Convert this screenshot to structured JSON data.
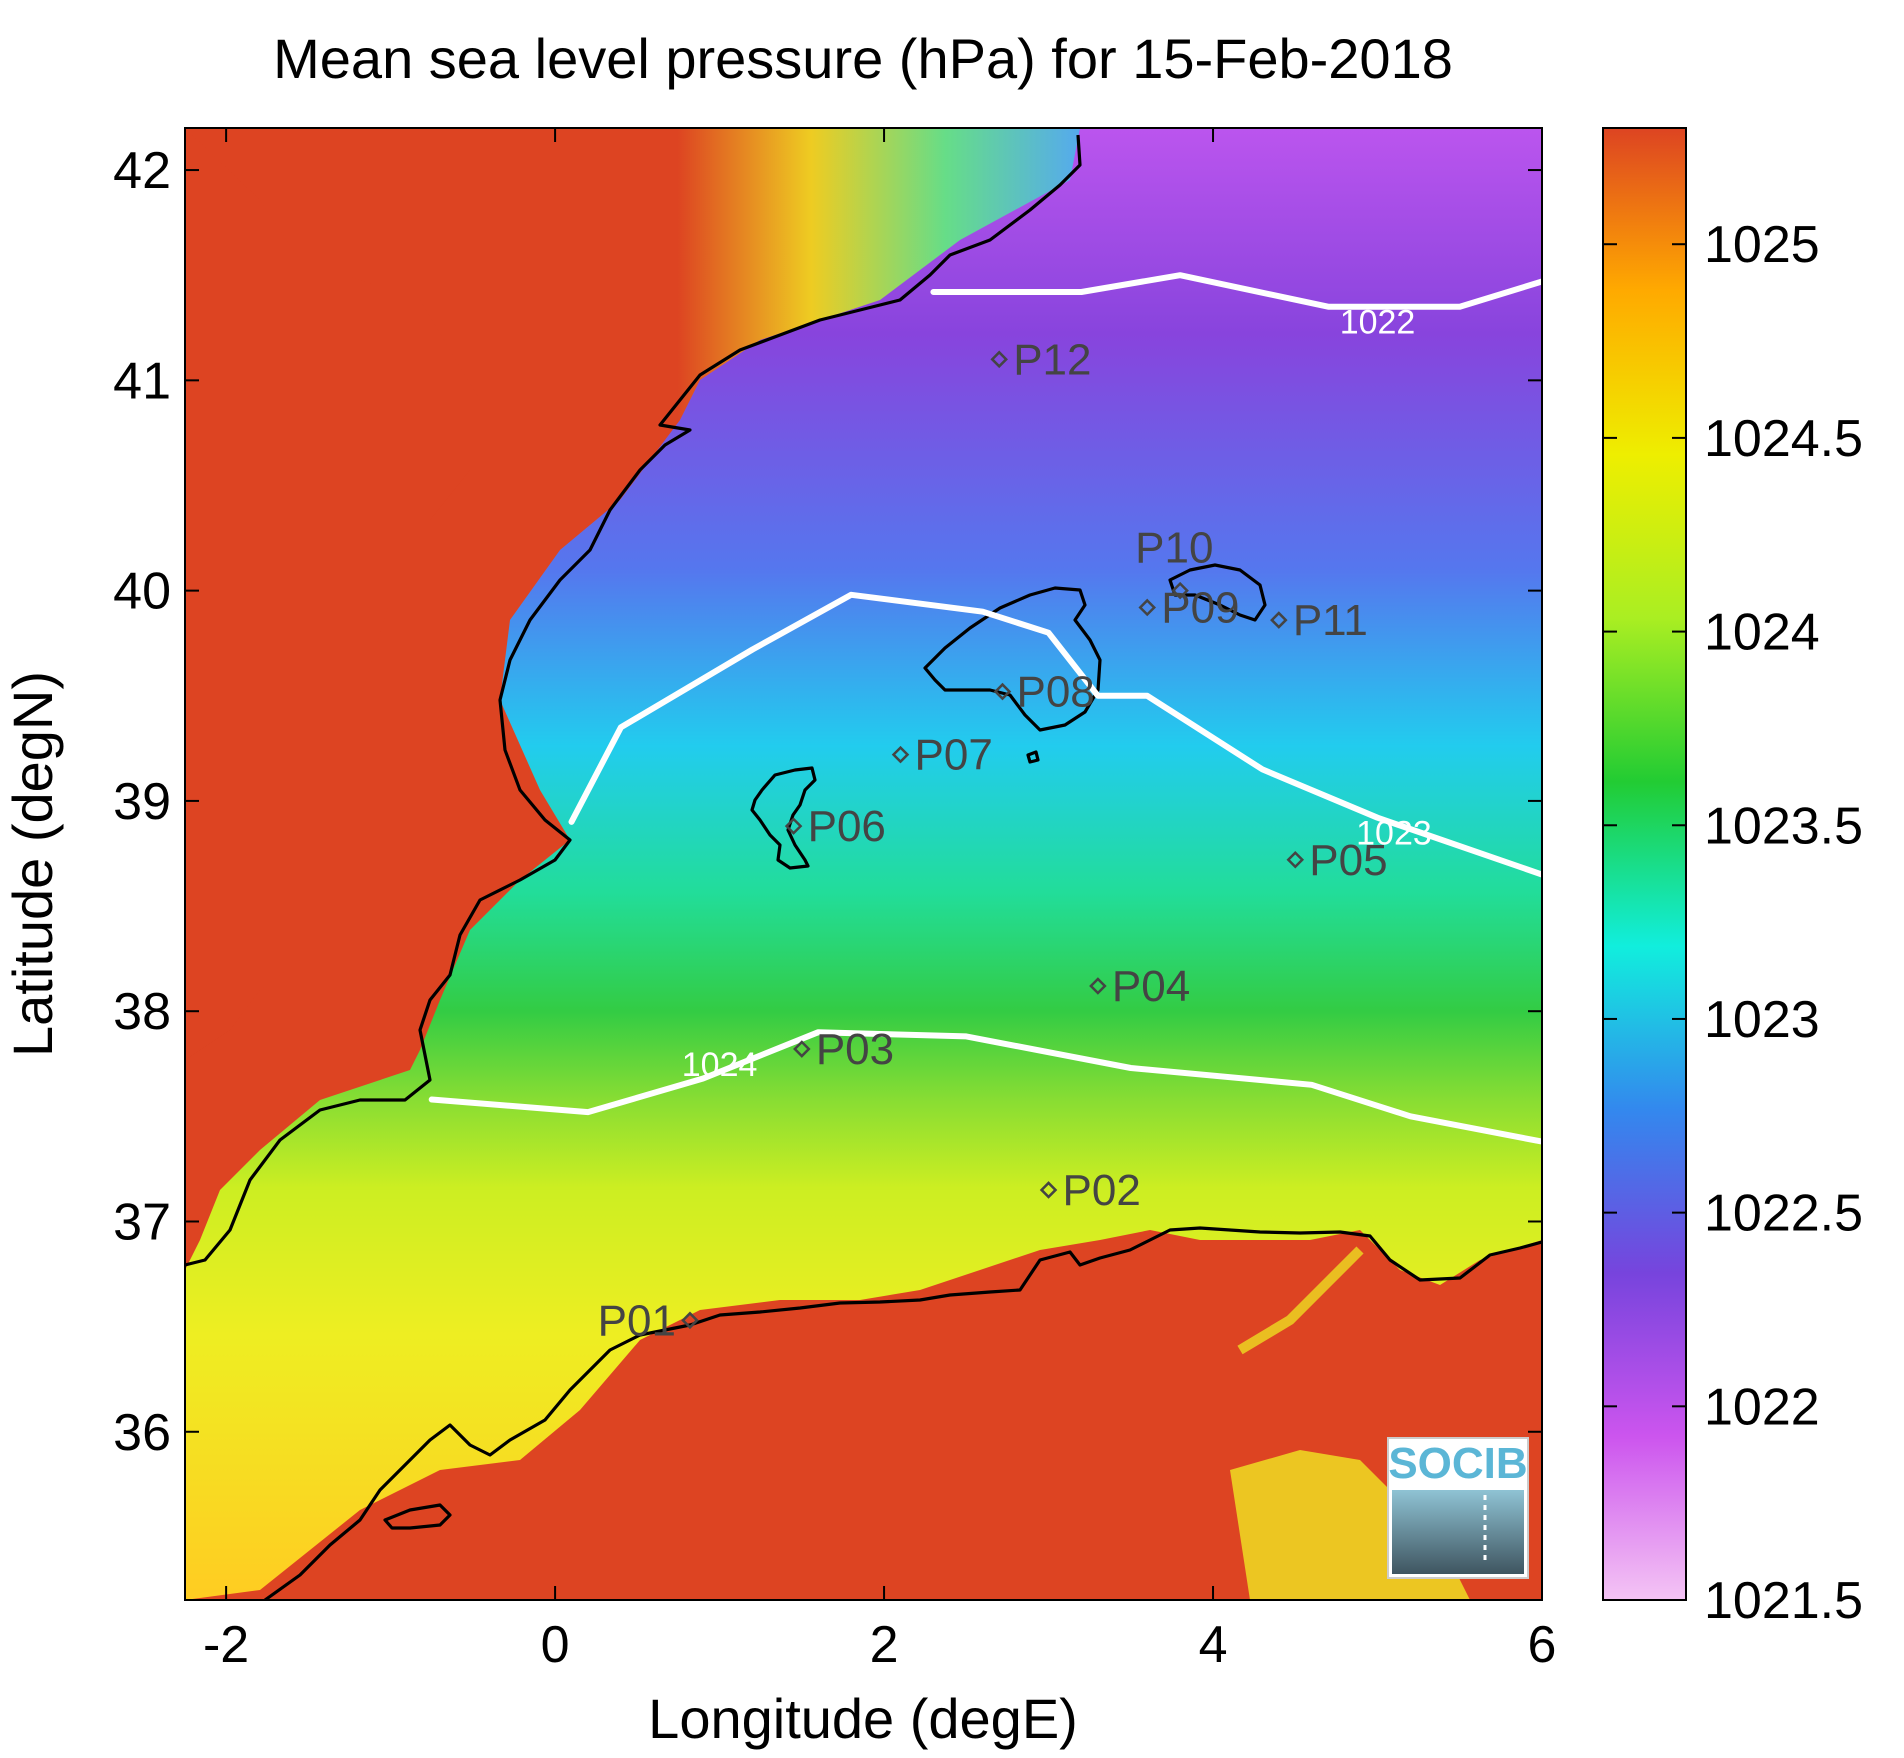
{
  "title": "Mean sea level pressure (hPa) for 15-Feb-2018",
  "x_axis": {
    "label": "Longitude (degE)",
    "range": [
      -2.25,
      6
    ],
    "ticks": [
      {
        "value": -2,
        "label": "-2"
      },
      {
        "value": 0,
        "label": "0"
      },
      {
        "value": 2,
        "label": "2"
      },
      {
        "value": 4,
        "label": "4"
      },
      {
        "value": 6,
        "label": "6"
      }
    ]
  },
  "y_axis": {
    "label": "Latitude (degN)",
    "range": [
      35.2,
      42.2
    ],
    "ticks": [
      {
        "value": 36,
        "label": "36"
      },
      {
        "value": 37,
        "label": "37"
      },
      {
        "value": 38,
        "label": "38"
      },
      {
        "value": 39,
        "label": "39"
      },
      {
        "value": 40,
        "label": "40"
      },
      {
        "value": 41,
        "label": "41"
      },
      {
        "value": 42,
        "label": "42"
      }
    ]
  },
  "colorbar": {
    "range": [
      1021.5,
      1025.3
    ],
    "ticks": [
      {
        "value": 1021.5,
        "label": "1021.5"
      },
      {
        "value": 1022,
        "label": "1022"
      },
      {
        "value": 1022.5,
        "label": "1022.5"
      },
      {
        "value": 1023,
        "label": "1023"
      },
      {
        "value": 1023.5,
        "label": "1023.5"
      },
      {
        "value": 1024,
        "label": "1024"
      },
      {
        "value": 1024.5,
        "label": "1024.5"
      },
      {
        "value": 1025,
        "label": "1025"
      }
    ],
    "colors": [
      "#f4c4f4",
      "#cc55ee",
      "#7744dd",
      "#3388ee",
      "#11eedd",
      "#22cc33",
      "#aaee22",
      "#eeee00",
      "#ffaa00",
      "#dd4422"
    ]
  },
  "stations": [
    {
      "id": "P01",
      "lon": 0.82,
      "lat": 36.53
    },
    {
      "id": "P02",
      "lon": 3.0,
      "lat": 37.15
    },
    {
      "id": "P03",
      "lon": 1.5,
      "lat": 37.82
    },
    {
      "id": "P04",
      "lon": 3.3,
      "lat": 38.12
    },
    {
      "id": "P05",
      "lon": 4.5,
      "lat": 38.72
    },
    {
      "id": "P06",
      "lon": 1.45,
      "lat": 38.88
    },
    {
      "id": "P07",
      "lon": 2.1,
      "lat": 39.22
    },
    {
      "id": "P08",
      "lon": 2.72,
      "lat": 39.52
    },
    {
      "id": "P09",
      "lon": 3.6,
      "lat": 39.92
    },
    {
      "id": "P10",
      "lon": 3.8,
      "lat": 40.0
    },
    {
      "id": "P11",
      "lon": 4.4,
      "lat": 39.86
    },
    {
      "id": "P12",
      "lon": 2.7,
      "lat": 41.1
    }
  ],
  "contours": [
    {
      "level": 1022,
      "label": "1022",
      "points": [
        [
          2.3,
          41.42
        ],
        [
          3.2,
          41.42
        ],
        [
          3.8,
          41.5
        ],
        [
          4.7,
          41.35
        ],
        [
          5.5,
          41.35
        ],
        [
          6.0,
          41.47
        ]
      ],
      "label_at": [
        5.0,
        41.28
      ]
    },
    {
      "level": 1023,
      "label": "1023",
      "points": [
        [
          0.1,
          38.9
        ],
        [
          0.4,
          39.35
        ],
        [
          1.2,
          39.72
        ],
        [
          1.8,
          39.98
        ],
        [
          2.6,
          39.9
        ],
        [
          3.0,
          39.8
        ],
        [
          3.3,
          39.5
        ],
        [
          3.6,
          39.5
        ],
        [
          4.3,
          39.15
        ],
        [
          5.0,
          38.92
        ],
        [
          6.0,
          38.65
        ]
      ],
      "label_at": [
        5.1,
        38.85
      ]
    },
    {
      "level": 1024,
      "label": "1024",
      "points": [
        [
          -0.75,
          37.58
        ],
        [
          0.2,
          37.52
        ],
        [
          0.9,
          37.68
        ],
        [
          1.6,
          37.9
        ],
        [
          2.5,
          37.88
        ],
        [
          3.5,
          37.73
        ],
        [
          4.6,
          37.65
        ],
        [
          5.2,
          37.5
        ],
        [
          6.0,
          37.38
        ]
      ],
      "label_at": [
        1.0,
        37.75
      ]
    }
  ],
  "logo": {
    "text": "SOCIB"
  }
}
